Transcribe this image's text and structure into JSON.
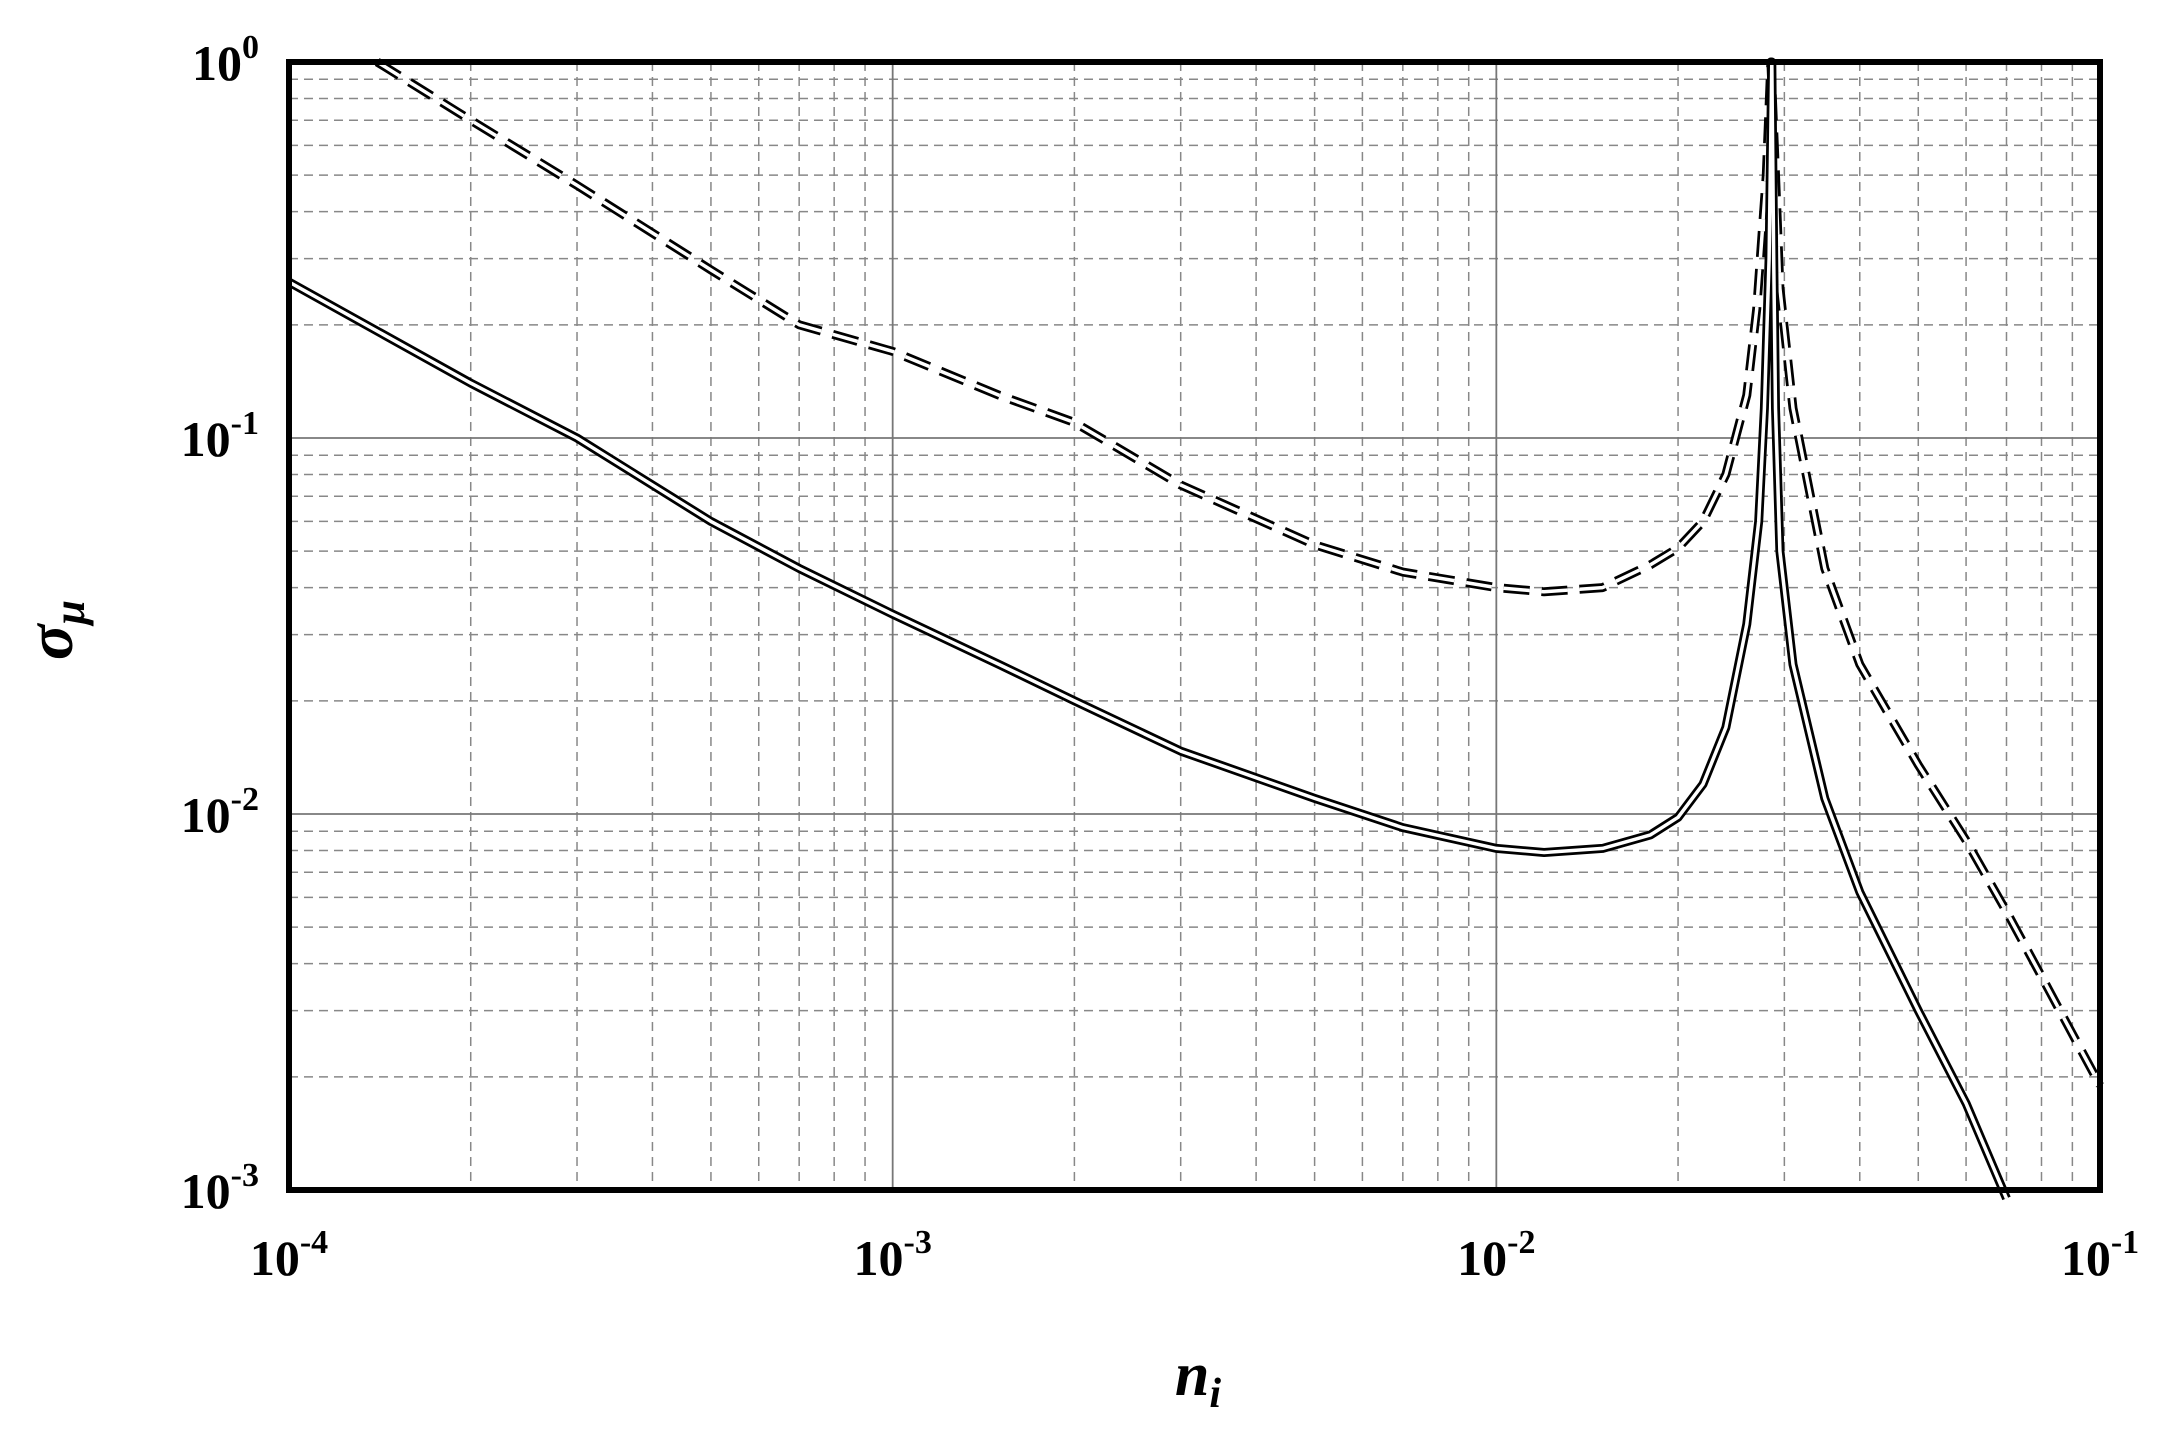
{
  "chart_data": {
    "type": "line",
    "xlabel": "n",
    "xlabel_sub": "i",
    "ylabel": "σ",
    "ylabel_sub": "μ",
    "x_scale": "log",
    "y_scale": "log",
    "xlim": [
      0.0001,
      0.1
    ],
    "ylim": [
      0.001,
      1
    ],
    "grid": true,
    "x_ticks": [
      {
        "value": 0.0001,
        "base": "10",
        "exp": "-4"
      },
      {
        "value": 0.001,
        "base": "10",
        "exp": "-3"
      },
      {
        "value": 0.01,
        "base": "10",
        "exp": "-2"
      },
      {
        "value": 0.1,
        "base": "10",
        "exp": "-1"
      }
    ],
    "y_ticks": [
      {
        "value": 1,
        "base": "10",
        "exp": "0"
      },
      {
        "value": 0.1,
        "base": "10",
        "exp": "-1"
      },
      {
        "value": 0.01,
        "base": "10",
        "exp": "-2"
      },
      {
        "value": 0.001,
        "base": "10",
        "exp": "-3"
      }
    ],
    "series": [
      {
        "style": "dashed",
        "color": "#000000",
        "points": [
          [
            0.00014,
            1.0
          ],
          [
            0.0002,
            0.7
          ],
          [
            0.0003,
            0.47
          ],
          [
            0.0005,
            0.28
          ],
          [
            0.0007,
            0.2
          ],
          [
            0.001,
            0.17
          ],
          [
            0.0015,
            0.13
          ],
          [
            0.002,
            0.11
          ],
          [
            0.003,
            0.075
          ],
          [
            0.005,
            0.052
          ],
          [
            0.007,
            0.044
          ],
          [
            0.01,
            0.04
          ],
          [
            0.012,
            0.039
          ],
          [
            0.015,
            0.04
          ],
          [
            0.018,
            0.046
          ],
          [
            0.02,
            0.051
          ],
          [
            0.022,
            0.06
          ],
          [
            0.024,
            0.08
          ],
          [
            0.026,
            0.13
          ],
          [
            0.027,
            0.22
          ],
          [
            0.028,
            0.5
          ],
          [
            0.0285,
            1.0
          ],
          [
            0.029,
            0.5
          ],
          [
            0.0295,
            0.25
          ],
          [
            0.031,
            0.12
          ],
          [
            0.035,
            0.045
          ],
          [
            0.04,
            0.025
          ],
          [
            0.05,
            0.0135
          ],
          [
            0.06,
            0.0085
          ],
          [
            0.07,
            0.0055
          ],
          [
            0.08,
            0.0037
          ],
          [
            0.09,
            0.0026
          ],
          [
            0.1,
            0.0019
          ]
        ]
      },
      {
        "style": "solid",
        "color": "#000000",
        "points": [
          [
            0.0001,
            0.26
          ],
          [
            0.0002,
            0.14
          ],
          [
            0.0003,
            0.1
          ],
          [
            0.0005,
            0.06
          ],
          [
            0.0007,
            0.045
          ],
          [
            0.001,
            0.034
          ],
          [
            0.0015,
            0.025
          ],
          [
            0.002,
            0.02
          ],
          [
            0.003,
            0.0147
          ],
          [
            0.005,
            0.011
          ],
          [
            0.007,
            0.0092
          ],
          [
            0.01,
            0.0081
          ],
          [
            0.012,
            0.0079
          ],
          [
            0.015,
            0.0081
          ],
          [
            0.018,
            0.0088
          ],
          [
            0.02,
            0.0098
          ],
          [
            0.022,
            0.012
          ],
          [
            0.024,
            0.017
          ],
          [
            0.026,
            0.032
          ],
          [
            0.0272,
            0.06
          ],
          [
            0.0278,
            0.12
          ],
          [
            0.0283,
            0.3
          ],
          [
            0.0286,
            1.0
          ],
          [
            0.0288,
            0.3
          ],
          [
            0.029,
            0.12
          ],
          [
            0.0295,
            0.05
          ],
          [
            0.031,
            0.025
          ],
          [
            0.035,
            0.011
          ],
          [
            0.04,
            0.0062
          ],
          [
            0.05,
            0.003
          ],
          [
            0.06,
            0.0017
          ],
          [
            0.07,
            0.00095
          ]
        ]
      }
    ]
  }
}
